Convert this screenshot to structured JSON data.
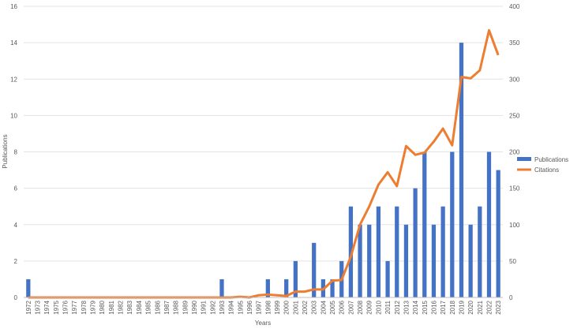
{
  "chart_data": {
    "type": "bar",
    "xlabel": "Years",
    "ylabel": "Publications",
    "y2label": "",
    "ylim": [
      0,
      16
    ],
    "y2lim": [
      0,
      400
    ],
    "yticks": [
      0,
      2,
      4,
      6,
      8,
      10,
      12,
      14,
      16
    ],
    "y2ticks": [
      0,
      50,
      100,
      150,
      200,
      250,
      300,
      350,
      400
    ],
    "grid": true,
    "legend_position": "right",
    "categories": [
      "1972",
      "1973",
      "1974",
      "1975",
      "1976",
      "1977",
      "1978",
      "1979",
      "1980",
      "1981",
      "1982",
      "1983",
      "1984",
      "1985",
      "1986",
      "1987",
      "1988",
      "1989",
      "1990",
      "1991",
      "1992",
      "1993",
      "1994",
      "1995",
      "1996",
      "1997",
      "1998",
      "1999",
      "2000",
      "2001",
      "2002",
      "2003",
      "2004",
      "2005",
      "2006",
      "2007",
      "2008",
      "2009",
      "2010",
      "2011",
      "2012",
      "2013",
      "2014",
      "2015",
      "2016",
      "2017",
      "2018",
      "2019",
      "2020",
      "2021",
      "2022",
      "2023"
    ],
    "series": [
      {
        "name": "Publications",
        "kind": "bar",
        "axis": "left",
        "color": "#4472C4",
        "values": [
          1,
          0,
          0,
          0,
          0,
          0,
          0,
          0,
          0,
          0,
          0,
          0,
          0,
          0,
          0,
          0,
          0,
          0,
          0,
          0,
          0,
          1,
          0,
          0,
          0,
          0,
          1,
          0,
          1,
          2,
          0,
          3,
          1,
          1,
          2,
          5,
          4,
          4,
          5,
          2,
          5,
          4,
          6,
          8,
          4,
          5,
          8,
          14,
          4,
          5,
          8,
          7
        ]
      },
      {
        "name": "Citations",
        "kind": "line",
        "axis": "right",
        "color": "#ED7D31",
        "values": [
          0,
          0,
          0,
          0,
          0,
          0,
          0,
          0,
          0,
          0,
          0,
          0,
          0,
          0,
          0,
          0,
          0,
          0,
          0,
          0,
          0,
          0,
          0,
          1,
          0,
          3,
          4,
          3,
          2,
          8,
          8,
          11,
          11,
          23,
          24,
          56,
          100,
          125,
          155,
          172,
          153,
          208,
          196,
          199,
          214,
          232,
          209,
          303,
          301,
          312,
          367,
          333
        ]
      }
    ]
  }
}
